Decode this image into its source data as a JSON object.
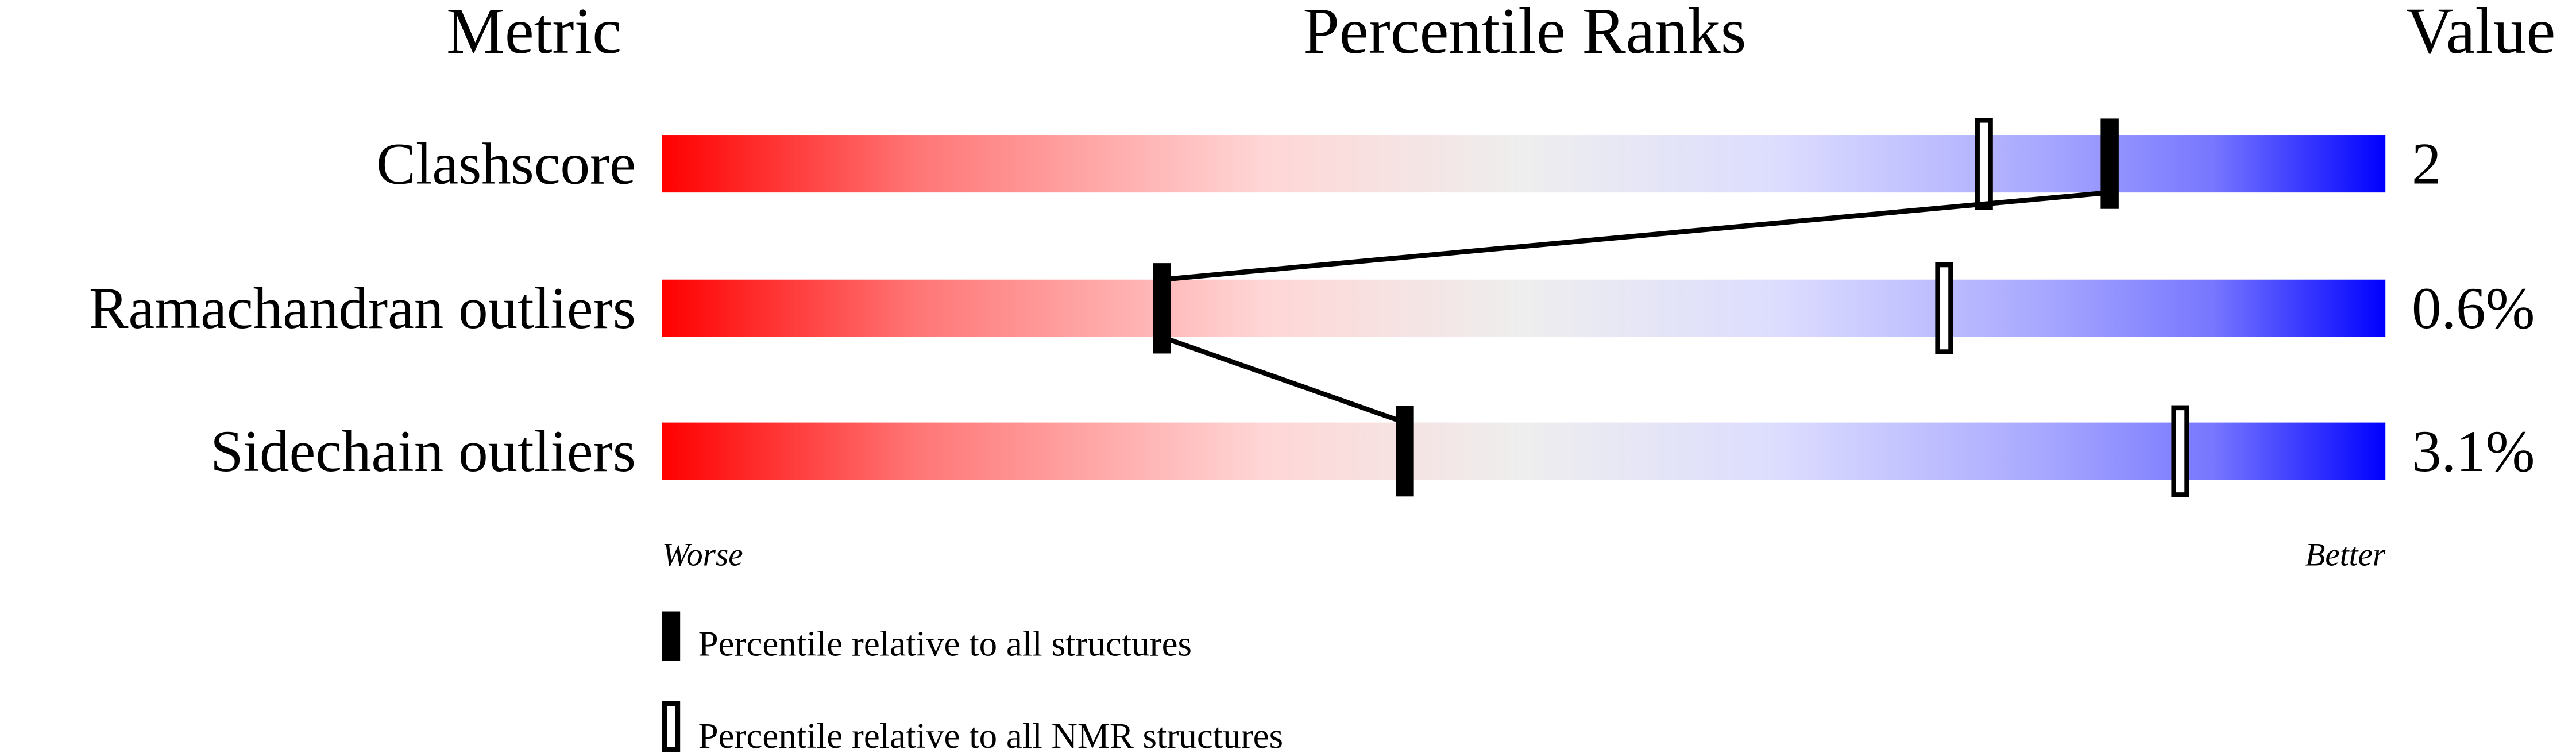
{
  "chart_data": {
    "type": "percentile-ranks",
    "headers": {
      "metric": "Metric",
      "title": "Percentile Ranks",
      "value": "Value"
    },
    "xlim": [
      0,
      100
    ],
    "axis_left_label": "Worse",
    "axis_right_label": "Better",
    "gradient_colors": [
      "#ff0000",
      "#ff7777",
      "#ffd6d6",
      "#eeeeee",
      "#dcdcff",
      "#a8a8ff",
      "#7777ff",
      "#0000ff"
    ],
    "rows": [
      {
        "metric": "Clashscore",
        "value": "2",
        "percentile_all": 84,
        "percentile_nmr": 76.7
      },
      {
        "metric": "Ramachandran outliers",
        "value": "0.6%",
        "percentile_all": 29,
        "percentile_nmr": 74.4
      },
      {
        "metric": "Sidechain outliers",
        "value": "3.1%",
        "percentile_all": 43.1,
        "percentile_nmr": 88.1
      }
    ],
    "legend": [
      {
        "marker": "filled",
        "label": "Percentile relative to all structures"
      },
      {
        "marker": "open",
        "label": "Percentile relative to all NMR structures"
      }
    ]
  }
}
